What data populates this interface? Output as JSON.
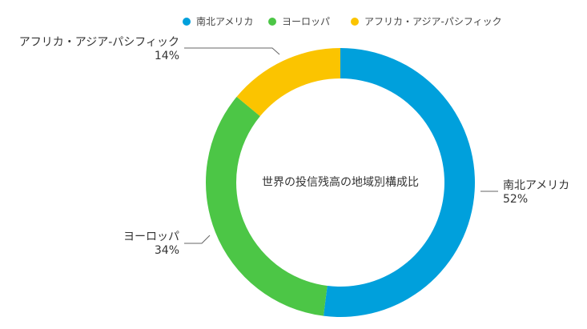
{
  "chart_data": {
    "type": "pie",
    "title": "世界の投信残高の地域別構成比",
    "donut": true,
    "legend_position": "top",
    "slices": [
      {
        "name": "南北アメリカ",
        "value": 52,
        "label": "52%",
        "color": "#00a0dc"
      },
      {
        "name": "ヨーロッパ",
        "value": 34,
        "label": "34%",
        "color": "#4cc646"
      },
      {
        "name": "アフリカ・アジア-パシフィック",
        "value": 14,
        "label": "14%",
        "color": "#fbc400"
      }
    ]
  }
}
